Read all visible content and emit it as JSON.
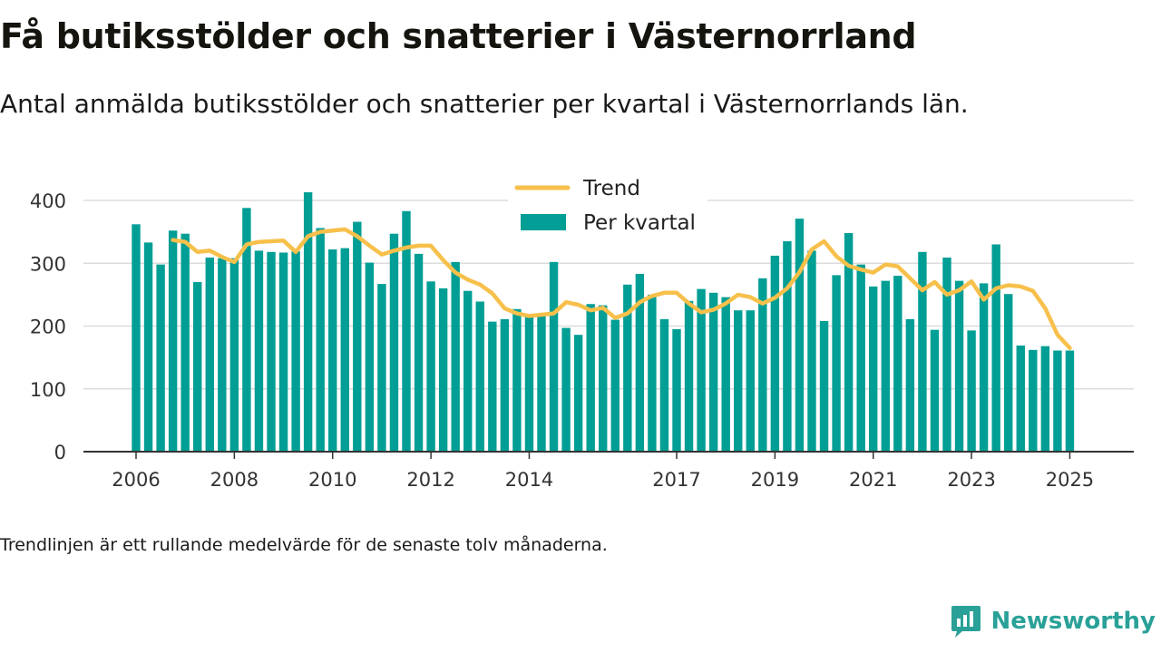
{
  "header": {
    "title": "Få butiksstölder och snatterier i Västernorrland",
    "subtitle": "Antal anmälda butiksstölder och snatterier per kvartal i Västernorrlands län."
  },
  "footer": {
    "note": "Trendlinjen är ett rullande medelvärde för de senaste tolv månaderna.",
    "brand": "Newsworthy"
  },
  "colors": {
    "bar": "#009e94",
    "trend": "#f7c04b",
    "grid": "#dcdcdc",
    "axis": "#333333",
    "brand": "#2aa198"
  },
  "chart_data": {
    "type": "bar",
    "ylim": [
      0,
      400
    ],
    "yticks": [
      0,
      100,
      200,
      300,
      400
    ],
    "xlim": [
      2006.0,
      2025.25
    ],
    "xticks": [
      "2006",
      "2008",
      "2010",
      "2012",
      "2014",
      "2017",
      "2019",
      "2021",
      "2023",
      "2025"
    ],
    "legend": {
      "placement": "top-center",
      "trend": "Trend",
      "bars": "Per kvartal"
    },
    "x": [
      2006.0,
      2006.25,
      2006.5,
      2006.75,
      2007.0,
      2007.25,
      2007.5,
      2007.75,
      2008.0,
      2008.25,
      2008.5,
      2008.75,
      2009.0,
      2009.25,
      2009.5,
      2009.75,
      2010.0,
      2010.25,
      2010.5,
      2010.75,
      2011.0,
      2011.25,
      2011.5,
      2011.75,
      2012.0,
      2012.25,
      2012.5,
      2012.75,
      2013.0,
      2013.25,
      2013.5,
      2013.75,
      2014.0,
      2014.25,
      2014.5,
      2014.75,
      2015.0,
      2015.25,
      2015.5,
      2015.75,
      2016.0,
      2016.25,
      2016.5,
      2016.75,
      2017.0,
      2017.25,
      2017.5,
      2017.75,
      2018.0,
      2018.25,
      2018.5,
      2018.75,
      2019.0,
      2019.25,
      2019.5,
      2019.75,
      2020.0,
      2020.25,
      2020.5,
      2020.75,
      2021.0,
      2021.25,
      2021.5,
      2021.75,
      2022.0,
      2022.25,
      2022.5,
      2022.75,
      2023.0,
      2023.25,
      2023.5,
      2023.75,
      2024.0,
      2024.25,
      2024.5,
      2024.75,
      2025.0
    ],
    "series": [
      {
        "name": "Per kvartal",
        "type": "bar",
        "values": [
          362,
          333,
          298,
          352,
          347,
          270,
          309,
          308,
          308,
          388,
          320,
          318,
          317,
          319,
          413,
          356,
          322,
          324,
          366,
          301,
          267,
          347,
          383,
          315,
          271,
          260,
          302,
          256,
          239,
          207,
          211,
          227,
          216,
          216,
          302,
          197,
          186,
          235,
          233,
          210,
          266,
          283,
          250,
          211,
          195,
          240,
          259,
          253,
          246,
          225,
          225,
          276,
          312,
          335,
          371,
          320,
          208,
          281,
          348,
          298,
          263,
          272,
          280,
          211,
          318,
          194,
          309,
          272,
          193,
          268,
          330,
          251,
          169,
          162,
          168,
          161,
          161
        ]
      },
      {
        "name": "Trend",
        "type": "line",
        "x": [
          2006.75,
          2007.0,
          2007.25,
          2007.5,
          2007.75,
          2008.0,
          2008.25,
          2008.5,
          2008.75,
          2009.0,
          2009.25,
          2009.5,
          2009.75,
          2010.0,
          2010.25,
          2010.5,
          2010.75,
          2011.0,
          2011.25,
          2011.5,
          2011.75,
          2012.0,
          2012.25,
          2012.5,
          2012.75,
          2013.0,
          2013.25,
          2013.5,
          2013.75,
          2014.0,
          2014.25,
          2014.5,
          2014.75,
          2015.0,
          2015.25,
          2015.5,
          2015.75,
          2016.0,
          2016.25,
          2016.5,
          2016.75,
          2017.0,
          2017.25,
          2017.5,
          2017.75,
          2018.0,
          2018.25,
          2018.5,
          2018.75,
          2019.0,
          2019.25,
          2019.5,
          2019.75,
          2020.0,
          2020.25,
          2020.5,
          2020.75,
          2021.0,
          2021.25,
          2021.5,
          2021.75,
          2022.0,
          2022.25,
          2022.5,
          2022.75,
          2023.0,
          2023.25,
          2023.5,
          2023.75,
          2024.0,
          2024.25,
          2024.5,
          2024.75,
          2025.0
        ],
        "values": [
          337,
          334,
          318,
          320,
          310,
          302,
          330,
          334,
          335,
          336,
          318,
          343,
          350,
          352,
          354,
          343,
          328,
          314,
          320,
          325,
          328,
          328,
          305,
          285,
          274,
          266,
          252,
          228,
          220,
          216,
          218,
          220,
          238,
          234,
          225,
          229,
          213,
          220,
          238,
          248,
          253,
          253,
          236,
          222,
          226,
          236,
          250,
          246,
          236,
          245,
          260,
          286,
          322,
          335,
          311,
          296,
          290,
          285,
          298,
          295,
          276,
          257,
          270,
          250,
          257,
          271,
          242,
          260,
          265,
          263,
          256,
          228,
          186,
          165
        ]
      }
    ]
  }
}
